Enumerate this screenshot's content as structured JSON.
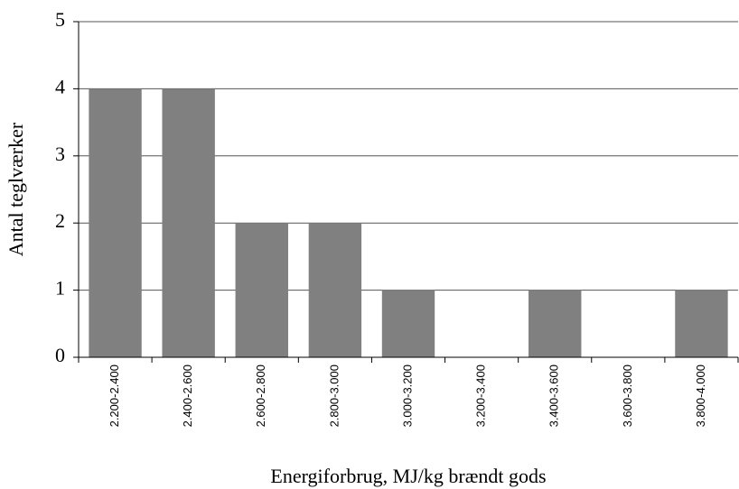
{
  "chart_data": {
    "type": "bar",
    "categories": [
      "2.200-2.400",
      "2.400-2.600",
      "2.600-2.800",
      "2.800-3.000",
      "3.000-3.200",
      "3.200-3.400",
      "3.400-3.600",
      "3.600-3.800",
      "3.800-4.000"
    ],
    "values": [
      4,
      4,
      2,
      2,
      1,
      0,
      1,
      0,
      1
    ],
    "color": "#808080",
    "x_label": "Energiforbrug, MJ/kg brændt gods",
    "y_label": "Antal teglværker",
    "ylim": [
      0,
      5
    ],
    "yticks": [
      0,
      1,
      2,
      3,
      4,
      5
    ],
    "grid": true
  }
}
